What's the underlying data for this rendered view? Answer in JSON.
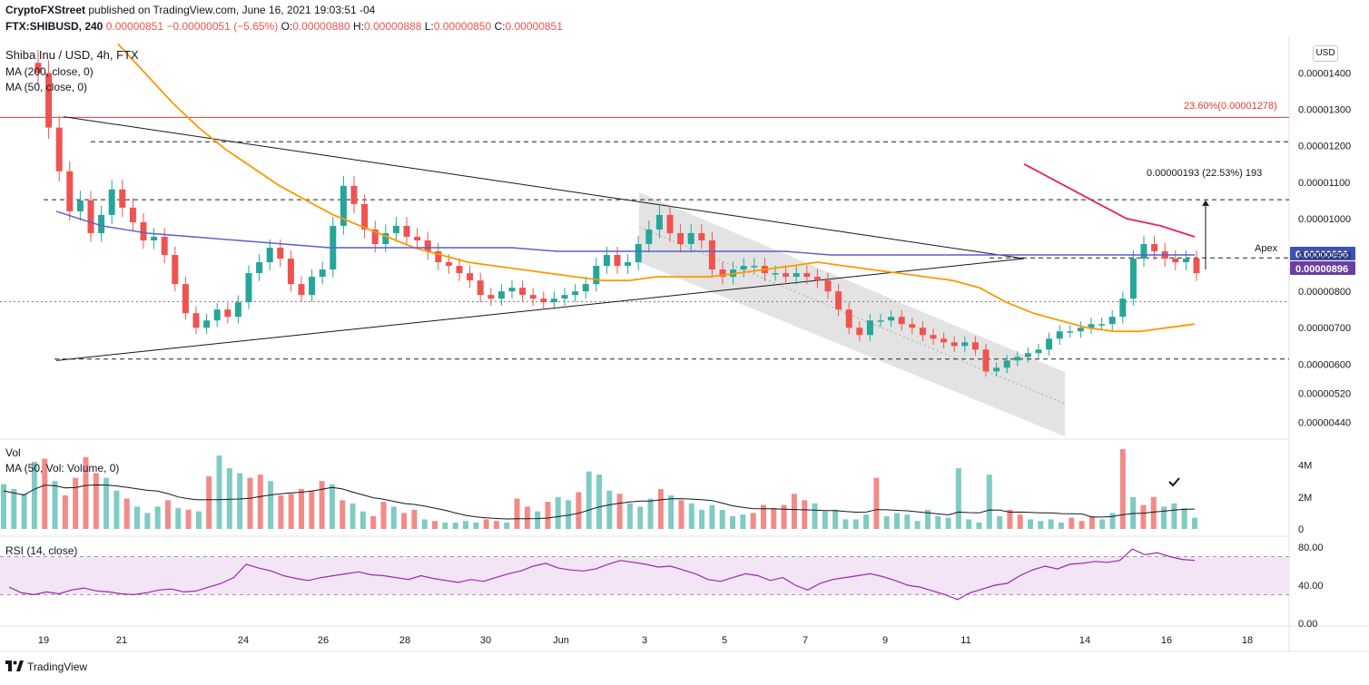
{
  "header": {
    "publisher": "CryptoFXStreet",
    "published_text": " published on TradingView.com, June 16, 2021 19:03:51 -04",
    "symbol_line": "FTX:SHIBUSD, 240",
    "last_price": "0.00000851",
    "change": "−0.00000051 (−5.65%)",
    "o_label": "O:",
    "o": "0.00000880",
    "h_label": "H:",
    "h": "0.00000888",
    "l_label": "L:",
    "l": "0.00000850",
    "c_label": "C:",
    "c": "0.00000851"
  },
  "legend": {
    "title": "Shiba Inu / USD, 4h, FTX",
    "ma200": "MA (200, close, 0)",
    "ma50": "MA (50, close, 0)",
    "vol": "Vol",
    "vol_ma": "MA (50, Vol: Volume, 0)",
    "rsi": "RSI (14, close)"
  },
  "currency": "USD",
  "footer": {
    "brand": "TradingView"
  },
  "colors": {
    "up": "#26a69a",
    "down": "#ef5350",
    "vol_up": "#80cbc4",
    "vol_down": "#f28b88",
    "ma50": "#ff9800",
    "ma200": "#5b5fc7",
    "ma_pink": "#e91e63",
    "fib": "#e53935",
    "rsi": "#9c27b0",
    "rsi_band": "#f3e5f5",
    "channel": "#d9d9d9",
    "price_badge": "#6b3fa0",
    "ma_badge": "#3f51b5"
  },
  "chart_data": {
    "type": "candlestick",
    "title": "Shiba Inu / USD, 4h, FTX",
    "x_ticks": [
      "19",
      "21",
      "24",
      "26",
      "28",
      "30",
      "Jun",
      "3",
      "5",
      "7",
      "9",
      "11",
      "14",
      "16",
      "18"
    ],
    "y_ticks": [
      "0.00000440",
      "0.00000520",
      "0.00000600",
      "0.00000700",
      "0.00000800",
      "0.00000900",
      "0.00001000",
      "0.00001100",
      "0.00001200",
      "0.00001300",
      "0.00001400"
    ],
    "y_tick_values": [
      4.4e-06,
      5.2e-06,
      6e-06,
      7e-06,
      8e-06,
      9e-06,
      1e-05,
      1.1e-05,
      1.2e-05,
      1.3e-05,
      1.4e-05
    ],
    "price_closes": [
      1.4e-05,
      1.25e-05,
      1.13e-05,
      1.02e-05,
      1.05e-05,
      9.6e-06,
      1.01e-05,
      1.08e-05,
      1.03e-05,
      9.9e-06,
      9.4e-06,
      9.5e-06,
      9e-06,
      8.2e-06,
      7.4e-06,
      7e-06,
      7.2e-06,
      7.5e-06,
      7.3e-06,
      7.7e-06,
      8.5e-06,
      8.8e-06,
      9.2e-06,
      8.9e-06,
      8.2e-06,
      7.9e-06,
      8.4e-06,
      8.6e-06,
      9.8e-06,
      1.09e-05,
      1.04e-05,
      9.7e-06,
      9.3e-06,
      9.6e-06,
      9.8e-06,
      9.5e-06,
      9.4e-06,
      9.1e-06,
      8.8e-06,
      8.7e-06,
      8.5e-06,
      8.3e-06,
      7.9e-06,
      7.8e-06,
      8e-06,
      8.1e-06,
      7.9e-06,
      7.8e-06,
      7.7e-06,
      7.8e-06,
      7.9e-06,
      8e-06,
      8.2e-06,
      8.7e-06,
      9e-06,
      8.7e-06,
      8.8e-06,
      9.3e-06,
      9.7e-06,
      1.01e-05,
      9.6e-06,
      9.3e-06,
      9.6e-06,
      9.4e-06,
      8.6e-06,
      8.4e-06,
      8.6e-06,
      8.7e-06,
      8.7e-06,
      8.5e-06,
      8.5e-06,
      8.4e-06,
      8.5e-06,
      8.4e-06,
      8.3e-06,
      8e-06,
      7.5e-06,
      7e-06,
      6.8e-06,
      7.2e-06,
      7.2e-06,
      7.3e-06,
      7.1e-06,
      7e-06,
      6.8e-06,
      6.7e-06,
      6.6e-06,
      6.5e-06,
      6.6e-06,
      6.4e-06,
      5.8e-06,
      5.9e-06,
      6.1e-06,
      6.2e-06,
      6.3e-06,
      6.4e-06,
      6.7e-06,
      6.9e-06,
      6.9e-06,
      7e-06,
      7.1e-06,
      7.1e-06,
      7.3e-06,
      7.8e-06,
      8.9e-06,
      9.3e-06,
      9.1e-06,
      8.9e-06,
      8.8e-06,
      8.9e-06,
      8.5e-06
    ],
    "ma50_values": [
      1.48e-05,
      1.4e-05,
      1.32e-05,
      1.25e-05,
      1.19e-05,
      1.14e-05,
      1.09e-05,
      1.05e-05,
      1.01e-05,
      9.8e-06,
      9.5e-06,
      9.2e-06,
      9e-06,
      8.8e-06,
      8.7e-06,
      8.6e-06,
      8.5e-06,
      8.4e-06,
      8.3e-06,
      8.3e-06,
      8.4e-06,
      8.4e-06,
      8.4e-06,
      8.5e-06,
      8.6e-06,
      8.7e-06,
      8.8e-06,
      8.7e-06,
      8.6e-06,
      8.5e-06,
      8.4e-06,
      8.3e-06,
      8.1e-06,
      7.7e-06,
      7.4e-06,
      7.2e-06,
      7e-06,
      6.9e-06,
      6.9e-06,
      7e-06,
      7.1e-06
    ],
    "ma200_values": [
      1.02e-05,
      9.8e-06,
      9.6e-06,
      9.5e-06,
      9.4e-06,
      9.3e-06,
      9.2e-06,
      9.2e-06,
      9.2e-06,
      9.2e-06,
      9.2e-06,
      9.1e-06,
      9.1e-06,
      9.1e-06,
      9.1e-06,
      9.1e-06,
      9.1e-06,
      9e-06,
      9e-06,
      9e-06,
      9e-06,
      9e-06,
      9e-06,
      9e-06,
      9e-06,
      9e-06
    ],
    "ma_pink_values": [
      1.15e-05,
      1.1e-05,
      1.05e-05,
      1e-05,
      9.8e-06,
      9.5e-06
    ],
    "volume_values": [
      2.8,
      2.5,
      2.2,
      4.2,
      4.4,
      3.0,
      2.1,
      3.2,
      4.5,
      3.5,
      3.2,
      2.4,
      1.9,
      1.4,
      1.0,
      1.4,
      1.8,
      1.3,
      1.2,
      1.1,
      3.3,
      4.6,
      3.8,
      3.5,
      3.2,
      3.4,
      3.0,
      2.1,
      2.2,
      2.5,
      2.4,
      3.0,
      2.8,
      1.8,
      1.6,
      1.1,
      0.8,
      1.7,
      1.4,
      1.0,
      1.2,
      0.6,
      0.5,
      0.4,
      0.4,
      0.5,
      0.4,
      0.6,
      0.5,
      0.4,
      1.9,
      1.4,
      1.1,
      1.7,
      2.0,
      1.8,
      2.3,
      3.6,
      3.4,
      2.4,
      2.2,
      1.6,
      1.4,
      1.9,
      2.5,
      2.1,
      1.8,
      1.6,
      1.2,
      1.5,
      1.2,
      0.8,
      0.9,
      1.0,
      1.5,
      1.3,
      1.5,
      2.2,
      1.8,
      1.6,
      1.1,
      1.2,
      0.6,
      0.6,
      0.9,
      3.2,
      0.8,
      1.0,
      0.9,
      0.5,
      1.2,
      0.8,
      0.7,
      3.8,
      0.6,
      0.4,
      3.4,
      0.8,
      1.2,
      0.9,
      0.6,
      0.5,
      0.6,
      0.4,
      0.7,
      0.5,
      0.8,
      0.6,
      1.0,
      5.0,
      2.0,
      1.5,
      2.0,
      1.4,
      1.6,
      1.3,
      0.7
    ],
    "rsi_values": [
      38,
      32,
      30,
      33,
      31,
      35,
      37,
      34,
      33,
      31,
      30,
      32,
      35,
      36,
      33,
      34,
      38,
      42,
      48,
      62,
      58,
      55,
      50,
      47,
      45,
      48,
      50,
      52,
      54,
      51,
      50,
      48,
      46,
      50,
      47,
      45,
      43,
      46,
      44,
      48,
      52,
      55,
      60,
      63,
      58,
      56,
      55,
      57,
      62,
      66,
      64,
      62,
      59,
      60,
      56,
      52,
      46,
      44,
      48,
      52,
      50,
      45,
      48,
      40,
      35,
      42,
      46,
      48,
      50,
      52,
      49,
      45,
      40,
      38,
      34,
      30,
      25,
      32,
      36,
      40,
      42,
      50,
      56,
      60,
      57,
      62,
      63,
      65,
      64,
      66,
      78,
      72,
      74,
      70,
      67,
      66
    ],
    "rsi_ticks": [
      "80.00",
      "40.00",
      "0.00"
    ],
    "rsi_tick_values": [
      80,
      40,
      0
    ],
    "vol_ticks": [
      "4M",
      "2M",
      "0"
    ],
    "vol_tick_values": [
      4,
      2,
      0
    ],
    "price_badges": [
      {
        "value": "0.00000896",
        "kind": "ma"
      },
      {
        "value": "0.00000896",
        "kind": "price"
      }
    ],
    "annotations": {
      "fib": "23.60%(0.00001278)",
      "fib_value": 1.278e-05,
      "measure": "0.00000193 (22.53%) 193",
      "apex": "Apex"
    },
    "levels": [
      1.211e-05,
      1.052e-05,
      8.92e-06,
      7.72e-06,
      6.14e-06
    ],
    "triangle": {
      "upper": [
        1.28e-05,
        8.9e-06
      ],
      "lower": [
        6.1e-06,
        8.9e-06
      ]
    },
    "legend_placement": "top-left",
    "grid": false
  }
}
